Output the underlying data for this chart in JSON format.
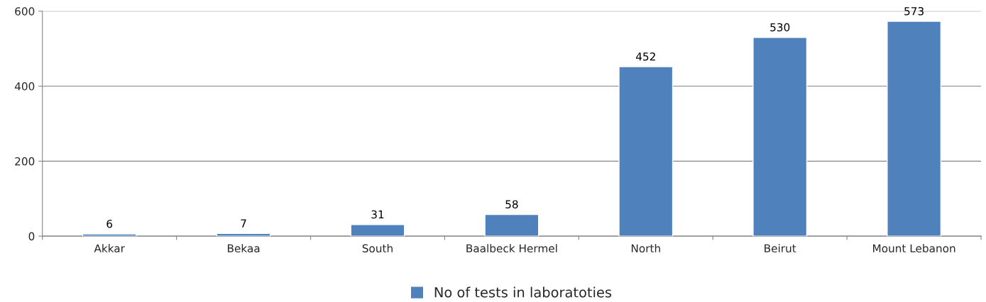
{
  "chart_data": {
    "type": "bar",
    "categories": [
      "Akkar",
      "Bekaa",
      "South",
      "Baalbeck Hermel",
      "North",
      "Beirut",
      "Mount Lebanon"
    ],
    "series": [
      {
        "name": "No of tests in laboratoties",
        "color": "#4f81bd",
        "values": [
          6,
          7,
          31,
          58,
          452,
          530,
          573
        ]
      }
    ],
    "ylim": [
      0,
      600
    ],
    "yticks": [
      0,
      200,
      400,
      600
    ],
    "grid": "y",
    "legend": "bottom",
    "data_labels": true
  }
}
